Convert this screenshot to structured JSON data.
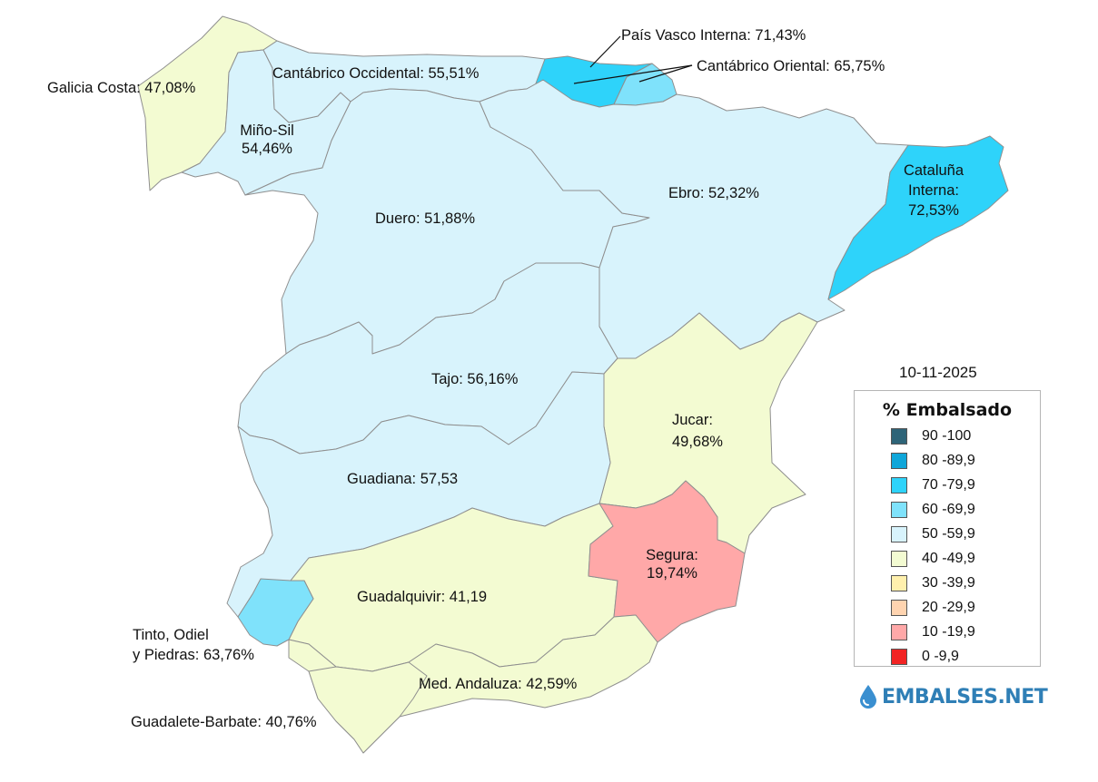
{
  "date": "10-11-2025",
  "legend": {
    "title": "% Embalsado",
    "items": [
      {
        "label": "90 -100",
        "color": "#2e6478"
      },
      {
        "label": "80 -89,9",
        "color": "#0fa6d9"
      },
      {
        "label": "70 -79,9",
        "color": "#2ed3fa"
      },
      {
        "label": "60 -69,9",
        "color": "#7fe2fb"
      },
      {
        "label": "50 -59,9",
        "color": "#d8f3fc"
      },
      {
        "label": "40 -49,9",
        "color": "#f3fbd2"
      },
      {
        "label": "30 -39,9",
        "color": "#fff0ad"
      },
      {
        "label": "20 -29,9",
        "color": "#ffd4b0"
      },
      {
        "label": "10 -19,9",
        "color": "#ffa8a8"
      },
      {
        "label": "0 -9,9",
        "color": "#f22323"
      }
    ]
  },
  "basins": {
    "galicia": {
      "label": "Galicia Costa: 47,08%",
      "value": 47.08
    },
    "mino": {
      "name": "Miño-Sil",
      "value_text": "54,46%",
      "value": 54.46
    },
    "cantabrico_occ": {
      "label": "Cantábrico Occidental: 55,51%",
      "value": 55.51
    },
    "pais_vasco": {
      "label": "País Vasco Interna: 71,43%",
      "value": 71.43
    },
    "cantabrico_or": {
      "label": "Cantábrico Oriental: 65,75%",
      "value": 65.75
    },
    "duero": {
      "label": "Duero: 51,88%",
      "value": 51.88
    },
    "ebro": {
      "label": "Ebro: 52,32%",
      "value": 52.32
    },
    "cataluna": {
      "line1": "Cataluña",
      "line2": "Interna:",
      "value_text": "72,53%",
      "value": 72.53
    },
    "tajo": {
      "label": "Tajo: 56,16%",
      "value": 56.16
    },
    "jucar": {
      "name": "Jucar:",
      "value_text": "49,68%",
      "value": 49.68
    },
    "guadiana": {
      "label": "Guadiana: 57,53",
      "value": 57.53
    },
    "segura": {
      "name": "Segura:",
      "value_text": "19,74%",
      "value": 19.74
    },
    "guadalquivir": {
      "label": "Guadalquivir: 41,19",
      "value": 41.19
    },
    "tinto": {
      "line1": "Tinto, Odiel",
      "line2": "y Piedras: 63,76%",
      "value": 63.76
    },
    "med_andaluza": {
      "label": "Med. Andaluza: 42,59%",
      "value": 42.59
    },
    "guadalete": {
      "label": "Guadalete-Barbate: 40,76%",
      "value": 40.76
    }
  },
  "brand": {
    "name": "EMBALSES.NET",
    "icon": "water-drop-icon",
    "color": "#2f7fb6"
  }
}
